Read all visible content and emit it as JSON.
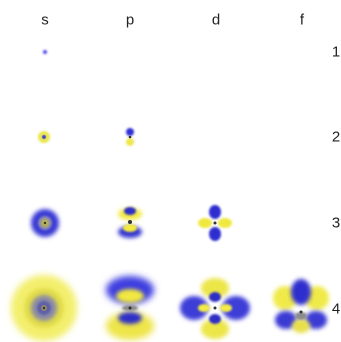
{
  "columns": [
    "s",
    "p",
    "d",
    "f"
  ],
  "rows": [
    "1",
    "2",
    "3",
    "4"
  ],
  "orbitals": [
    {
      "n": "1",
      "l": "s",
      "present": true
    },
    {
      "n": "2",
      "l": "s",
      "present": true
    },
    {
      "n": "2",
      "l": "p",
      "present": true
    },
    {
      "n": "3",
      "l": "s",
      "present": true
    },
    {
      "n": "3",
      "l": "p",
      "present": true
    },
    {
      "n": "3",
      "l": "d",
      "present": true
    },
    {
      "n": "4",
      "l": "s",
      "present": true
    },
    {
      "n": "4",
      "l": "p",
      "present": true
    },
    {
      "n": "4",
      "l": "d",
      "present": true
    },
    {
      "n": "4",
      "l": "f",
      "present": true
    }
  ],
  "colors": {
    "positive_lobe": "#f2ec40",
    "negative_lobe": "#3333d6",
    "node_gray": "#8a8a8a"
  }
}
